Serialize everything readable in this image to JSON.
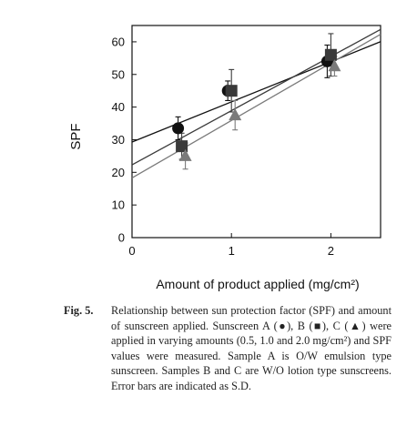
{
  "chart_data": {
    "type": "scatter",
    "title": "",
    "xlabel": "Amount of product applied (mg/cm²)",
    "ylabel": "SPF",
    "xlim": [
      0,
      2.5
    ],
    "ylim": [
      0,
      65
    ],
    "x_ticks": [
      0,
      1,
      2
    ],
    "y_ticks": [
      0,
      10,
      20,
      30,
      40,
      50,
      60
    ],
    "grid": false,
    "legend": "none",
    "series": [
      {
        "marker": "circle",
        "color": "#111111",
        "x": [
          0.5,
          1.0,
          2.0
        ],
        "y": [
          33.5,
          45.0,
          54.0
        ],
        "err": [
          3.5,
          3.0,
          5.0
        ],
        "fit": {
          "intercept": 29.3,
          "slope": 12.3
        }
      },
      {
        "marker": "square",
        "color": "#3a3a3a",
        "x": [
          0.5,
          1.0,
          2.0
        ],
        "y": [
          28.0,
          45.0,
          56.0
        ],
        "err": [
          4.0,
          6.5,
          6.5
        ],
        "fit": {
          "intercept": 22.3,
          "slope": 16.6
        }
      },
      {
        "marker": "triangle",
        "color": "#7a7a7a",
        "x": [
          0.5,
          1.0,
          2.0
        ],
        "y": [
          25.0,
          37.5,
          52.5
        ],
        "err": [
          4.0,
          4.5,
          3.0
        ],
        "fit": {
          "intercept": 18.3,
          "slope": 17.6
        }
      }
    ]
  },
  "caption": {
    "label": "Fig. 5.",
    "text": "Relationship between sun protection factor (SPF) and amount of sunscreen applied. Sunscreen A (●), B (■), C (▲) were applied in varying amounts (0.5, 1.0 and 2.0 mg/cm²) and SPF values were measured. Sample A is O/W emulsion type sunscreen. Samples B and C are W/O lotion type sunscreens. Error bars are indicated as S.D."
  }
}
